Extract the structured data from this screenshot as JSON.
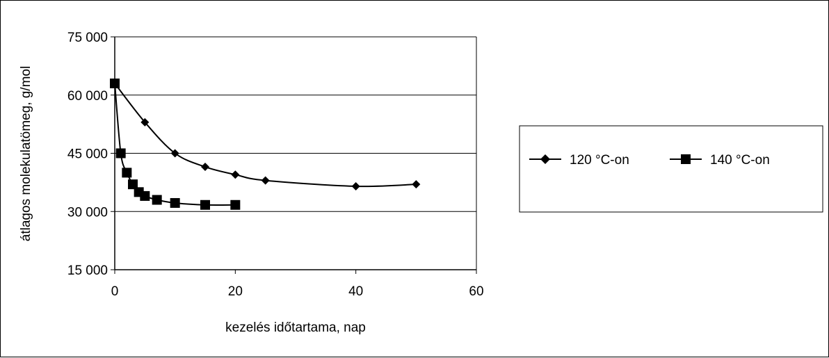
{
  "chart_data": {
    "type": "scatter",
    "title": "",
    "xlabel": "kezelés időtartama, nap",
    "ylabel": "átlagos molekulatömeg, g/mol",
    "xlim": [
      0,
      60
    ],
    "ylim": [
      15000,
      75000
    ],
    "x_ticks": [
      0,
      20,
      40,
      60
    ],
    "x_tick_labels": [
      "0",
      "20",
      "40",
      "60"
    ],
    "y_ticks": [
      15000,
      30000,
      45000,
      60000,
      75000
    ],
    "y_tick_labels": [
      "15 000",
      "30 000",
      "45 000",
      "60 000",
      "75 000"
    ],
    "grid": "horizontal",
    "smoothed_lines": true,
    "legend_position": "right",
    "series": [
      {
        "name": "120 °C-on",
        "marker": "diamond",
        "color": "#000000",
        "x": [
          0,
          5,
          10,
          15,
          20,
          25,
          40,
          50
        ],
        "y": [
          63000,
          53000,
          45000,
          41500,
          39500,
          38000,
          36500,
          37000
        ]
      },
      {
        "name": "140 °C-on",
        "marker": "square",
        "color": "#000000",
        "x": [
          0,
          1,
          2,
          3,
          4,
          5,
          7,
          10,
          15,
          20
        ],
        "y": [
          63000,
          45000,
          40000,
          37000,
          35000,
          34000,
          33000,
          32200,
          31700,
          31700
        ]
      }
    ]
  }
}
